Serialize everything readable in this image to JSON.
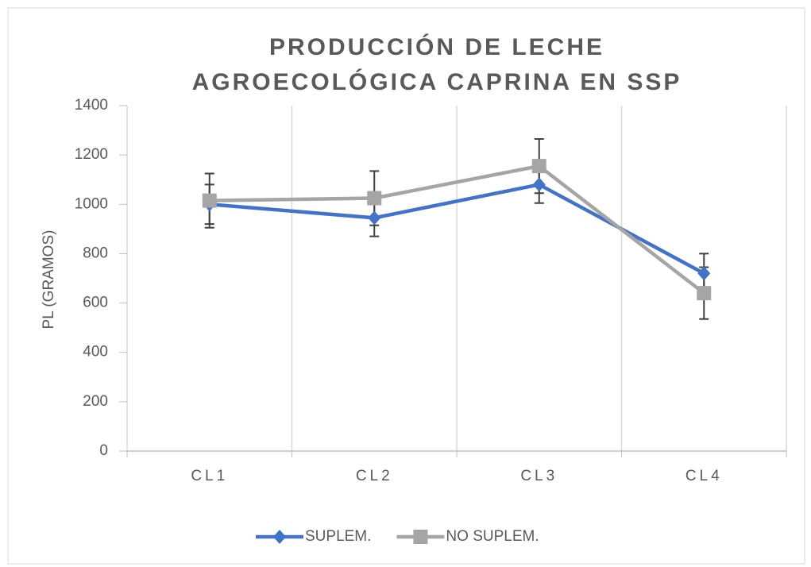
{
  "chart_data": {
    "type": "line",
    "title": "PRODUCCIÓN DE LECHE AGROECOLÓGICA CAPRINA EN SSP",
    "y_label": "PL (GRAMOS)",
    "categories": [
      "CL1",
      "CL2",
      "CL3",
      "CL4"
    ],
    "series": [
      {
        "name": "SUPLEM.",
        "color": "#4472c4",
        "marker": "diamond",
        "values": [
          1000,
          945,
          1080,
          720
        ],
        "errors": [
          80,
          75,
          75,
          80
        ]
      },
      {
        "name": "NO SUPLEM.",
        "color": "#a5a5a5",
        "marker": "square",
        "values": [
          1015,
          1025,
          1155,
          640
        ],
        "errors": [
          110,
          110,
          110,
          105
        ]
      }
    ],
    "ylim": [
      0,
      1400
    ],
    "yticks": [
      0,
      200,
      400,
      600,
      800,
      1000,
      1200,
      1400
    ],
    "grid": "vertical",
    "legend": "bottom"
  }
}
